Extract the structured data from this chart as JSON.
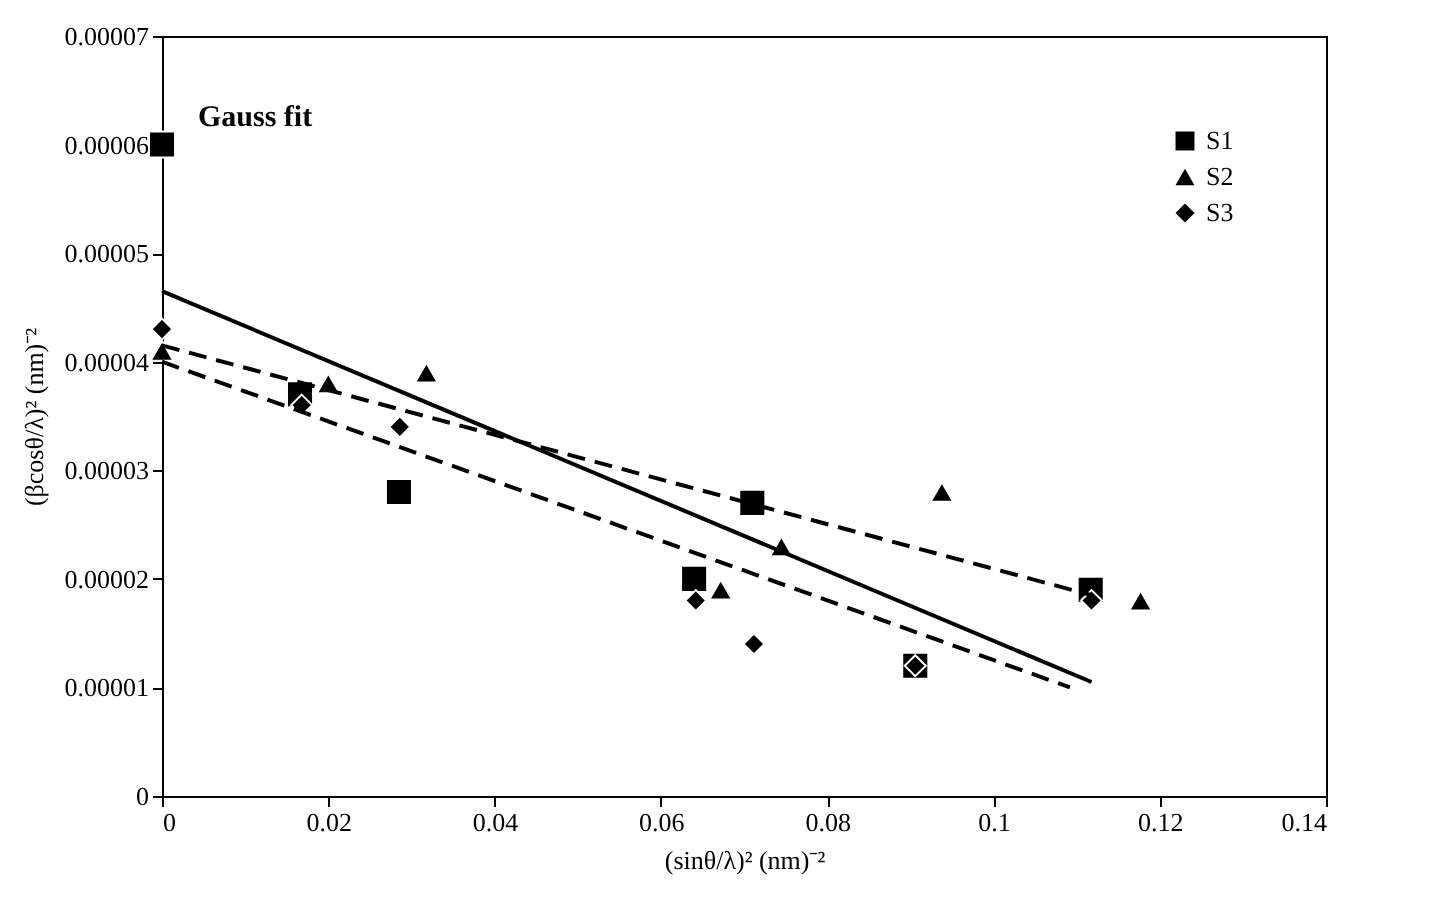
{
  "chart_data": {
    "type": "scatter",
    "xlabel": "(sinθ/λ)²  (nm)⁻²",
    "ylabel": "(βcosθ/λ)²  (nm)⁻²",
    "annotations": [
      "Gauss fit"
    ],
    "xlim": [
      0,
      0.14
    ],
    "xticks": [
      0,
      0.02,
      0.04,
      0.06,
      0.08,
      0.1,
      0.12,
      0.14
    ],
    "ylim": [
      0,
      7e-05
    ],
    "yticks": [
      0,
      {
        "value": 1e-05,
        "label": "0.00001"
      },
      {
        "value": 2e-05,
        "label": "0.00002"
      },
      {
        "value": 3e-05,
        "label": "0.00003"
      },
      {
        "value": 4e-05,
        "label": "0.00004"
      },
      {
        "value": 5e-05,
        "label": "0.00005"
      },
      {
        "value": 6e-05,
        "label": "0.00006"
      },
      {
        "value": 7e-05,
        "label": "0.00007"
      }
    ],
    "grid": false,
    "legend": "top right",
    "series": [
      {
        "name": "S1",
        "marker": "square",
        "color": "#000000",
        "x": [
          0,
          0.0166,
          0.0285,
          0.064,
          0.071,
          0.0906,
          0.1117
        ],
        "values": [
          6e-05,
          3.7e-05,
          2.8e-05,
          2e-05,
          2.7e-05,
          1.2e-05,
          1.9e-05
        ]
      },
      {
        "name": "S2",
        "marker": "triangle",
        "color": "#000000",
        "x": [
          0,
          0.02,
          0.0318,
          0.0672,
          0.0745,
          0.0938,
          0.1177
        ],
        "values": [
          4.1e-05,
          3.8e-05,
          3.9e-05,
          1.9e-05,
          2.3e-05,
          2.8e-05,
          1.8e-05
        ]
      },
      {
        "name": "S3",
        "marker": "diamond",
        "color": "#000000",
        "x": [
          0,
          0.0168,
          0.0286,
          0.0642,
          0.0712,
          0.0906,
          0.1118
        ],
        "values": [
          4.3e-05,
          3.6e-05,
          3.4e-05,
          1.8e-05,
          1.4e-05,
          1.2e-05,
          1.8e-05
        ]
      },
      {
        "type": "line",
        "line_style": "solid",
        "marker": "none",
        "color": "#000000",
        "x": [
          0,
          0.1118
        ],
        "values": [
          4.65e-05,
          1.05e-05
        ]
      },
      {
        "type": "line",
        "line_style": "dashed",
        "marker": "none",
        "color": "#000000",
        "x": [
          0,
          0.1118
        ],
        "values": [
          4.15e-05,
          1.85e-05
        ]
      },
      {
        "type": "line",
        "line_style": "dashed",
        "marker": "none",
        "color": "#000000",
        "x": [
          0,
          0.1092
        ],
        "values": [
          4e-05,
          1e-05
        ]
      }
    ]
  }
}
